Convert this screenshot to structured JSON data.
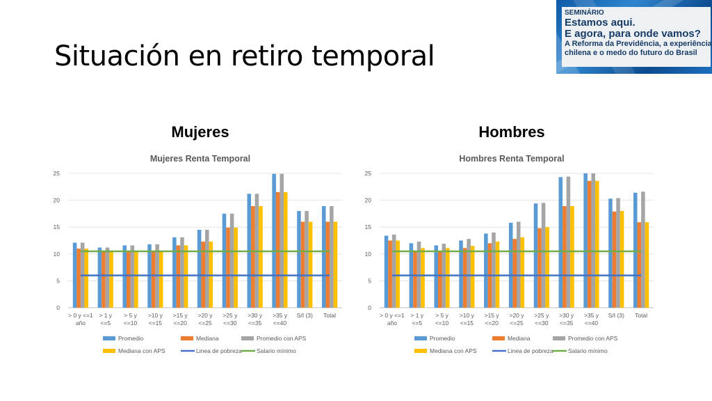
{
  "slide": {
    "title": "Situación en retiro temporal"
  },
  "banner": {
    "label": "SEMINÁRIO",
    "line1": "Estamos aqui.",
    "line2": "E agora, para onde vamos?",
    "line3": "A Reforma da Previdência, a experiência",
    "line4": "chilena e o medo do futuro do Brasil"
  },
  "headings": {
    "left": "Mujeres",
    "right": "Hombres"
  },
  "colors": {
    "promedio": "#5b9bd5",
    "mediana": "#ed7d31",
    "promedio_aps": "#a5a5a5",
    "mediana_aps": "#ffc000",
    "linea_pobreza": "#4472c4",
    "salario_minimo": "#70ad47"
  },
  "chart_data": [
    {
      "type": "bar",
      "title": "Mujeres Renta Temporal",
      "categories": [
        "> 0 y <=1 año",
        "> 1 y <=5",
        "> 5 y <=10",
        ">10 y <=15",
        ">15 y <=20",
        ">20 y <=25",
        ">25 y <=30",
        ">30 y <=35",
        ">35 y <=40",
        "S/I (3)",
        "Total"
      ],
      "series": [
        {
          "name": "Promedio",
          "values": [
            12.1,
            11.2,
            11.6,
            11.8,
            13.1,
            14.5,
            17.5,
            21.2,
            24.9,
            18.0,
            18.9
          ]
        },
        {
          "name": "Mediana",
          "values": [
            11.0,
            10.4,
            10.4,
            10.5,
            11.6,
            12.3,
            14.9,
            18.9,
            21.5,
            16.0,
            16.0
          ]
        },
        {
          "name": "Promedio con APS",
          "values": [
            12.1,
            11.2,
            11.6,
            11.8,
            13.1,
            14.5,
            17.5,
            21.2,
            24.9,
            18.0,
            18.9
          ]
        },
        {
          "name": "Mediana con APS",
          "values": [
            11.0,
            10.4,
            10.4,
            10.5,
            11.6,
            12.3,
            14.9,
            18.9,
            21.5,
            16.0,
            16.0
          ]
        }
      ],
      "lines": [
        {
          "name": "Linea de pobreza",
          "value": 6.0
        },
        {
          "name": "Salario mínimo",
          "value": 10.5
        }
      ],
      "ylim": [
        0,
        25
      ],
      "yticks": [
        "0",
        "5",
        "10",
        "15",
        "20",
        "25"
      ],
      "legend": "bottom"
    },
    {
      "type": "bar",
      "title": "Hombres Renta Temporal",
      "categories": [
        "> 0 y <=1 año",
        "> 1 y <=5",
        "> 5 y <=10",
        ">10 y <=15",
        ">15 y <=20",
        ">20 y <=25",
        ">25 y <=30",
        ">30 y <=35",
        ">35 y <=40",
        "S/I (3)",
        "Total"
      ],
      "series": [
        {
          "name": "Promedio",
          "values": [
            13.4,
            12.0,
            11.6,
            12.5,
            13.8,
            15.8,
            19.4,
            24.3,
            25.0,
            20.3,
            21.4
          ]
        },
        {
          "name": "Mediana",
          "values": [
            12.5,
            10.5,
            10.4,
            11.1,
            12.0,
            12.8,
            14.8,
            18.9,
            23.6,
            17.9,
            15.9
          ]
        },
        {
          "name": "Promedio con APS",
          "values": [
            13.6,
            12.3,
            11.9,
            12.8,
            14.0,
            16.0,
            19.5,
            24.4,
            25.0,
            20.4,
            21.6
          ]
        },
        {
          "name": "Mediana con APS",
          "values": [
            12.5,
            11.1,
            11.1,
            11.5,
            12.3,
            13.1,
            15.0,
            18.9,
            23.6,
            18.0,
            15.9
          ]
        }
      ],
      "lines": [
        {
          "name": "Linea de pobreza",
          "value": 6.0
        },
        {
          "name": "Salario mínimo",
          "value": 10.5
        }
      ],
      "ylim": [
        0,
        25
      ],
      "yticks": [
        "0",
        "5",
        "10",
        "15",
        "20",
        "25"
      ],
      "legend": "bottom"
    }
  ]
}
